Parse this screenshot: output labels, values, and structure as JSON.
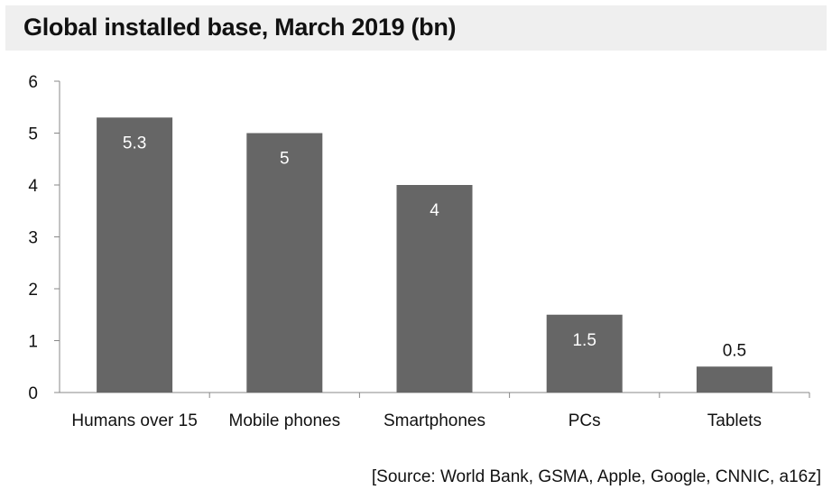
{
  "chart_data": {
    "type": "bar",
    "title": "Global installed base, March 2019 (bn)",
    "categories": [
      "Humans over 15",
      "Mobile phones",
      "Smartphones",
      "PCs",
      "Tablets"
    ],
    "values": [
      5.3,
      5,
      4,
      1.5,
      0.5
    ],
    "value_labels": [
      "5.3",
      "5",
      "4",
      "1.5",
      "0.5"
    ],
    "yticks": [
      "0",
      "1",
      "2",
      "3",
      "4",
      "5",
      "6"
    ],
    "ylim": [
      0,
      6
    ],
    "xlabel": "",
    "ylabel": "",
    "grid": false,
    "legend": "none",
    "colors": {
      "bar": "#666666",
      "label_inside": "#ffffff",
      "label_outside": "#111111",
      "axis": "#888888",
      "title_band": "#efefef"
    }
  },
  "footer": {
    "source": "[Source: World Bank, GSMA, Apple, Google, CNNIC, a16z]"
  }
}
